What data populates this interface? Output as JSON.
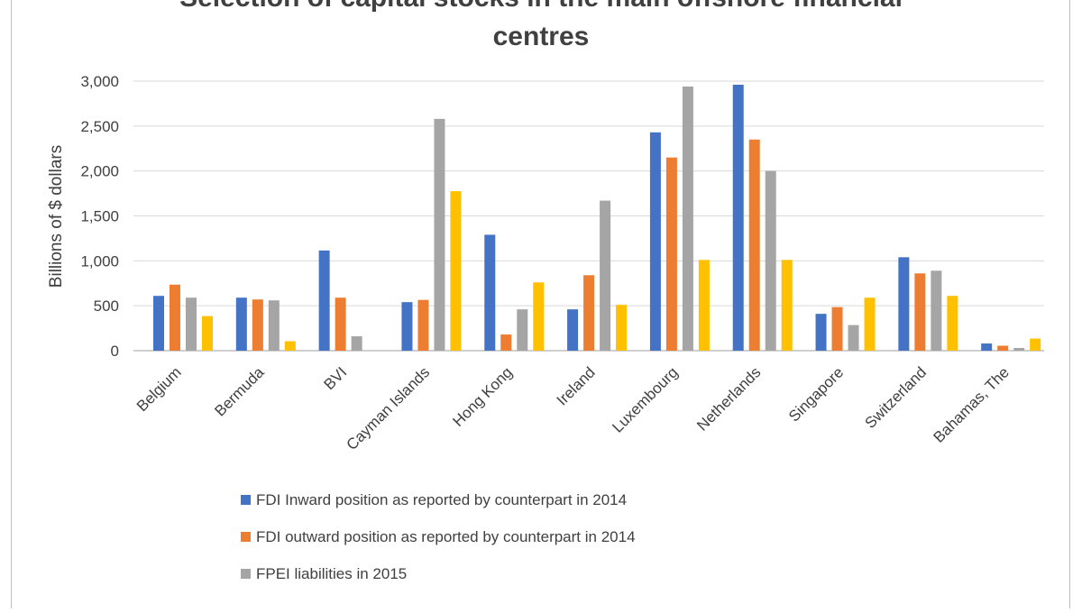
{
  "chart_data": {
    "type": "bar",
    "title_lines": [
      "Selection of capital stocks in the main offshore financial",
      "centres"
    ],
    "ylabel": "Billions of $ dollars",
    "xlabel": "",
    "ylim": [
      0,
      3000
    ],
    "yticks": [
      "0",
      "500",
      "1,000",
      "1,500",
      "2,000",
      "2,500",
      "3,000"
    ],
    "ytick_values": [
      0,
      500,
      1000,
      1500,
      2000,
      2500,
      3000
    ],
    "grid": true,
    "legend_position": "bottom",
    "categories": [
      "Belgium",
      "Bermuda",
      "BVI",
      "Cayman Islands",
      "Hong Kong",
      "Ireland",
      "Luxembourg",
      "Netherlands",
      "Singapore",
      "Switzerland",
      "Bahamas, The"
    ],
    "series": [
      {
        "name": "FDI Inward position as reported by counterpart in 2014",
        "color": "#4472C4",
        "values": [
          610,
          590,
          1115,
          540,
          1290,
          460,
          2430,
          2960,
          410,
          1040,
          80
        ]
      },
      {
        "name": "FDI outward position as reported by counterpart in 2014",
        "color": "#ED7D31",
        "values": [
          735,
          570,
          590,
          565,
          180,
          840,
          2150,
          2350,
          485,
          860,
          55
        ]
      },
      {
        "name": "FPEI liabilities in  2015",
        "color": "#A5A5A5",
        "values": [
          590,
          560,
          160,
          2580,
          460,
          1670,
          2940,
          2000,
          285,
          890,
          30
        ]
      },
      {
        "color": "#FFC000",
        "values": [
          385,
          105,
          0,
          1775,
          760,
          510,
          1010,
          1010,
          590,
          610,
          135
        ]
      }
    ]
  }
}
